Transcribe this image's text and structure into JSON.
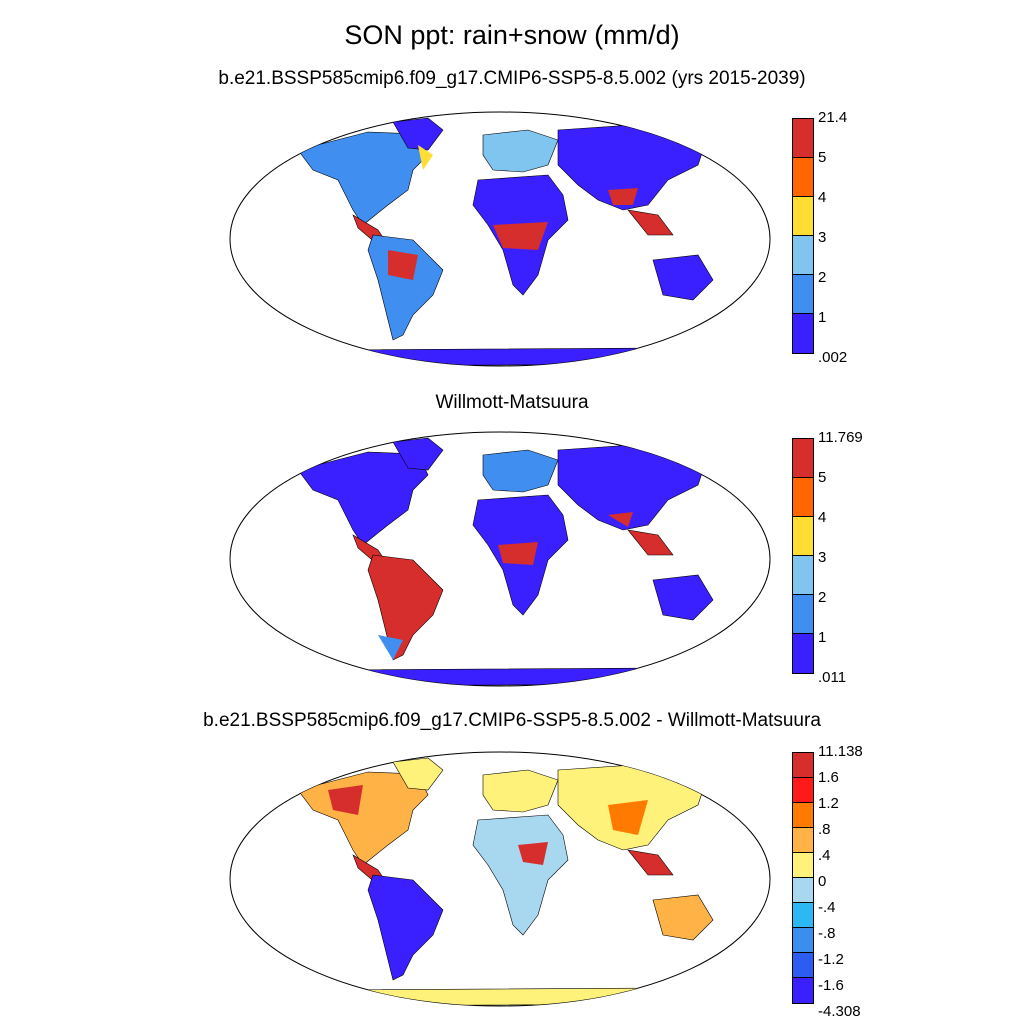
{
  "figure": {
    "title": "SON ppt: rain+snow (mm/d)",
    "panels": [
      {
        "id": "model",
        "title": "b.e21.BSSP585cmip6.f09_g17.CMIP6-SSP5-8.5.002 (yrs 2015-2039)",
        "colorbar": {
          "labels": [
            "21.4",
            "5",
            "4",
            "3",
            "2",
            "1",
            ".002"
          ],
          "colors": [
            "#d62d2d",
            "#ff6600",
            "#ffdd33",
            "#80c4f0",
            "#3f8ef0",
            "#3b20ff"
          ]
        }
      },
      {
        "id": "obs",
        "title": "Willmott-Matsuura",
        "colorbar": {
          "labels": [
            "11.769",
            "5",
            "4",
            "3",
            "2",
            "1",
            ".011"
          ],
          "colors": [
            "#d62d2d",
            "#ff6600",
            "#ffdd33",
            "#80c4f0",
            "#3f8ef0",
            "#3b20ff"
          ]
        }
      },
      {
        "id": "diff",
        "title": "b.e21.BSSP585cmip6.f09_g17.CMIP6-SSP5-8.5.002 - Willmott-Matsuura",
        "colorbar": {
          "labels": [
            "11.138",
            "1.6",
            "1.2",
            ".8",
            ".4",
            "0",
            "-.4",
            "-.8",
            "-1.2",
            "-1.6",
            "-4.308"
          ],
          "colors": [
            "#d62d2d",
            "#ff1a1a",
            "#ff7a00",
            "#ffb347",
            "#fff27a",
            "#a8d8f0",
            "#2bb8f5",
            "#3b8ef0",
            "#2b5ef0",
            "#3b20ff"
          ]
        }
      }
    ]
  }
}
